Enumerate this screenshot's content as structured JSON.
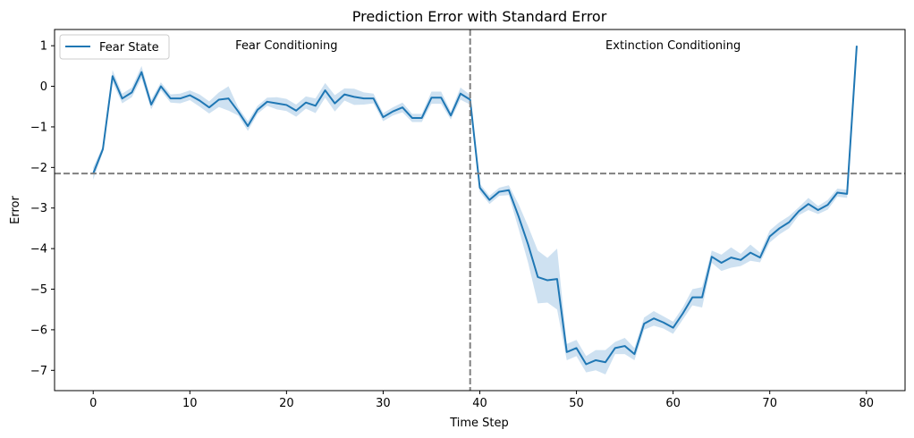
{
  "chart_data": {
    "type": "line",
    "title": "Prediction Error with Standard Error",
    "xlabel": "Time Step",
    "ylabel": "Error",
    "xlim": [
      -4,
      84
    ],
    "ylim": [
      -7.5,
      1.4
    ],
    "xticks": [
      0,
      10,
      20,
      30,
      40,
      50,
      60,
      70,
      80
    ],
    "yticks": [
      1,
      0,
      -1,
      -2,
      -3,
      -4,
      -5,
      -6,
      -7
    ],
    "xtick_labels": [
      "0",
      "10",
      "20",
      "30",
      "40",
      "50",
      "60",
      "70",
      "80"
    ],
    "ytick_labels": [
      "1",
      "0",
      "−1",
      "−2",
      "−3",
      "−4",
      "−5",
      "−6",
      "−7"
    ],
    "grid": false,
    "legend": {
      "position": "top-left",
      "entries": [
        "Fear State"
      ]
    },
    "annotations": [
      {
        "text": "Fear Conditioning",
        "x": 20,
        "y": 1
      },
      {
        "text": "Extinction Conditioning",
        "x": 60,
        "y": 1
      }
    ],
    "reference_lines": {
      "vertical_x": 39,
      "horizontal_y": -2.15
    },
    "series": [
      {
        "name": "Fear State",
        "color": "#1f77b4",
        "band_color": "#a6c8e6",
        "x": [
          0,
          1,
          2,
          3,
          4,
          5,
          6,
          7,
          8,
          9,
          10,
          11,
          12,
          13,
          14,
          15,
          16,
          17,
          18,
          19,
          20,
          21,
          22,
          23,
          24,
          25,
          26,
          27,
          28,
          29,
          30,
          31,
          32,
          33,
          34,
          35,
          36,
          37,
          38,
          39,
          40,
          41,
          42,
          43,
          44,
          45,
          46,
          47,
          48,
          49,
          50,
          51,
          52,
          53,
          54,
          55,
          56,
          57,
          58,
          59,
          60,
          61,
          62,
          63,
          64,
          65,
          66,
          67,
          68,
          69,
          70,
          71,
          72,
          73,
          74,
          75,
          76,
          77,
          78,
          79
        ],
        "values": [
          -2.15,
          -1.55,
          0.25,
          -0.3,
          -0.15,
          0.35,
          -0.45,
          0.0,
          -0.3,
          -0.3,
          -0.22,
          -0.35,
          -0.52,
          -0.33,
          -0.3,
          -0.62,
          -0.98,
          -0.58,
          -0.38,
          -0.42,
          -0.46,
          -0.6,
          -0.4,
          -0.48,
          -0.1,
          -0.42,
          -0.2,
          -0.26,
          -0.3,
          -0.3,
          -0.76,
          -0.62,
          -0.52,
          -0.78,
          -0.78,
          -0.28,
          -0.28,
          -0.72,
          -0.18,
          -0.33,
          -2.5,
          -2.8,
          -2.6,
          -2.56,
          -3.2,
          -3.9,
          -4.7,
          -4.78,
          -4.75,
          -6.55,
          -6.45,
          -6.85,
          -6.75,
          -6.8,
          -6.45,
          -6.4,
          -6.6,
          -5.85,
          -5.72,
          -5.82,
          -5.95,
          -5.6,
          -5.2,
          -5.2,
          -4.2,
          -4.35,
          -4.22,
          -4.28,
          -4.1,
          -4.22,
          -3.7,
          -3.5,
          -3.35,
          -3.08,
          -2.9,
          -3.05,
          -2.92,
          -2.62,
          -2.65,
          1.0
        ],
        "errors": [
          0.15,
          0.08,
          0.15,
          0.12,
          0.12,
          0.15,
          0.12,
          0.1,
          0.1,
          0.12,
          0.12,
          0.15,
          0.15,
          0.18,
          0.3,
          0.1,
          0.12,
          0.1,
          0.1,
          0.15,
          0.15,
          0.15,
          0.15,
          0.18,
          0.18,
          0.2,
          0.15,
          0.2,
          0.15,
          0.12,
          0.1,
          0.1,
          0.12,
          0.1,
          0.1,
          0.15,
          0.15,
          0.1,
          0.15,
          0.12,
          0.1,
          0.1,
          0.1,
          0.12,
          0.3,
          0.45,
          0.65,
          0.55,
          0.75,
          0.2,
          0.2,
          0.2,
          0.25,
          0.3,
          0.15,
          0.2,
          0.15,
          0.15,
          0.18,
          0.15,
          0.15,
          0.15,
          0.2,
          0.25,
          0.15,
          0.2,
          0.25,
          0.15,
          0.2,
          0.12,
          0.15,
          0.15,
          0.15,
          0.1,
          0.15,
          0.1,
          0.12,
          0.1,
          0.1,
          0.05
        ]
      }
    ]
  }
}
